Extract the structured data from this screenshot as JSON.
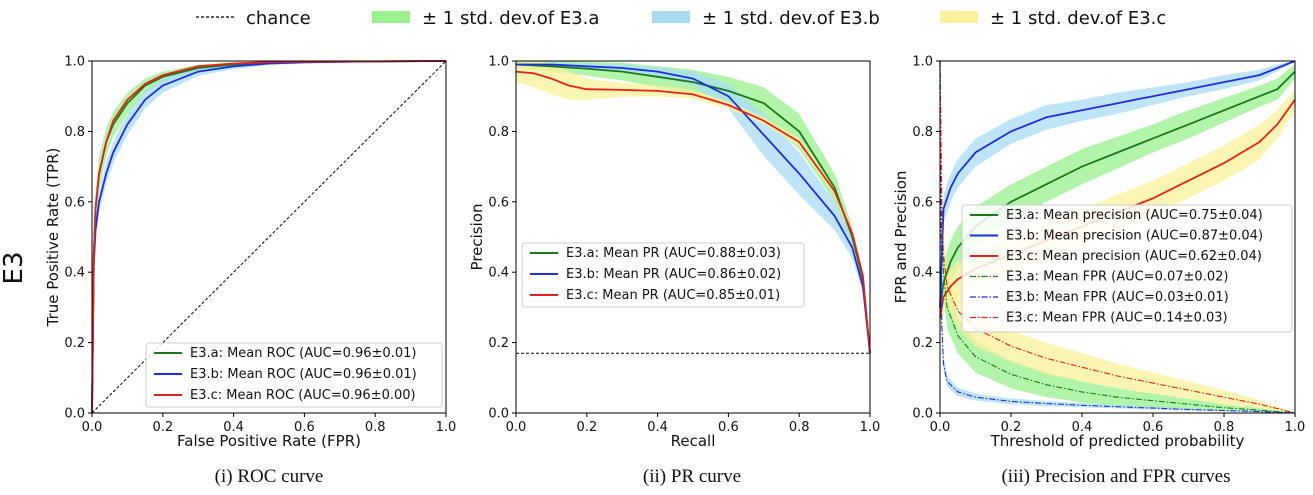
{
  "legend_top": [
    {
      "label": "chance",
      "kind": "line",
      "color": "#000000",
      "dash": true
    },
    {
      "label": "± 1 std. dev.of E3.a",
      "kind": "band",
      "color": "#9af08f"
    },
    {
      "label": "± 1 std. dev.of E3.b",
      "kind": "band",
      "color": "#a8dcf4"
    },
    {
      "label": "± 1 std. dev.of E3.c",
      "kind": "band",
      "color": "#faf29a"
    }
  ],
  "row_label": "E3",
  "colors": {
    "a": "#1a7a1a",
    "b": "#1c2ee0",
    "c": "#e8201a",
    "band_a": "#9af08f",
    "band_b": "#a8dcf4",
    "band_c": "#faf29a"
  },
  "captions": [
    "(i) ROC curve",
    "(ii) PR curve",
    "(iii) Precision and FPR curves"
  ],
  "chart_data": [
    {
      "type": "line",
      "xlabel": "False Positive Rate (FPR)",
      "ylabel": "True Positive Rate (TPR)",
      "xlim": [
        0,
        1
      ],
      "ylim": [
        0,
        1
      ],
      "xticks": [
        "0.0",
        "0.2",
        "0.4",
        "0.6",
        "0.8",
        "1.0"
      ],
      "yticks": [
        "0.0",
        "0.2",
        "0.4",
        "0.6",
        "0.8",
        "1.0"
      ],
      "legend_position": "lower right",
      "series": [
        {
          "name": "E3.a: Mean ROC (AUC=0.96±0.01)",
          "color": "#1a7a1a",
          "x": [
            0,
            0.005,
            0.01,
            0.02,
            0.04,
            0.06,
            0.1,
            0.15,
            0.2,
            0.3,
            0.4,
            0.5,
            0.6,
            0.8,
            1.0
          ],
          "y": [
            0,
            0.45,
            0.58,
            0.68,
            0.77,
            0.82,
            0.88,
            0.93,
            0.955,
            0.98,
            0.99,
            0.995,
            0.997,
            0.999,
            1.0
          ],
          "band": [
            0.05,
            0.05,
            0.05,
            0.05,
            0.04,
            0.035,
            0.03,
            0.02,
            0.015,
            0.01,
            0.006,
            0.004,
            0.003,
            0.001,
            0
          ]
        },
        {
          "name": "E3.b: Mean ROC (AUC=0.96±0.01)",
          "color": "#1c2ee0",
          "x": [
            0,
            0.005,
            0.01,
            0.02,
            0.04,
            0.06,
            0.1,
            0.15,
            0.2,
            0.3,
            0.4,
            0.5,
            0.6,
            0.8,
            1.0
          ],
          "y": [
            0,
            0.42,
            0.52,
            0.6,
            0.68,
            0.74,
            0.82,
            0.89,
            0.93,
            0.97,
            0.985,
            0.993,
            0.996,
            0.999,
            1.0
          ],
          "band": [
            0.03,
            0.03,
            0.03,
            0.03,
            0.03,
            0.03,
            0.03,
            0.025,
            0.02,
            0.012,
            0.008,
            0.005,
            0.003,
            0.001,
            0
          ]
        },
        {
          "name": "E3.c: Mean ROC (AUC=0.96±0.00)",
          "color": "#e8201a",
          "x": [
            0,
            0.005,
            0.01,
            0.02,
            0.04,
            0.06,
            0.1,
            0.15,
            0.2,
            0.3,
            0.4,
            0.5,
            0.6,
            0.8,
            1.0
          ],
          "y": [
            0,
            0.45,
            0.58,
            0.68,
            0.77,
            0.83,
            0.89,
            0.935,
            0.96,
            0.985,
            0.993,
            0.997,
            0.998,
            0.999,
            1.0
          ],
          "band": [
            0.01,
            0.01,
            0.01,
            0.01,
            0.008,
            0.006,
            0.005,
            0.004,
            0.003,
            0.002,
            0.001,
            0.001,
            0.001,
            0,
            0
          ]
        },
        {
          "name": "chance",
          "color": "#000000",
          "dash": true,
          "x": [
            0,
            1
          ],
          "y": [
            0,
            1
          ]
        }
      ]
    },
    {
      "type": "line",
      "xlabel": "Recall",
      "ylabel": "Precision",
      "xlim": [
        0,
        1
      ],
      "ylim": [
        0,
        1
      ],
      "xticks": [
        "0.0",
        "0.2",
        "0.4",
        "0.6",
        "0.8",
        "1.0"
      ],
      "yticks": [
        "0.0",
        "0.2",
        "0.4",
        "0.6",
        "0.8",
        "1.0"
      ],
      "legend_position": "center left",
      "series": [
        {
          "name": "E3.a: Mean PR (AUC=0.88±0.03)",
          "color": "#1a7a1a",
          "x": [
            0,
            0.1,
            0.2,
            0.3,
            0.4,
            0.5,
            0.6,
            0.7,
            0.8,
            0.9,
            0.95,
            0.98,
            1.0
          ],
          "y": [
            0.99,
            0.985,
            0.978,
            0.97,
            0.955,
            0.94,
            0.915,
            0.88,
            0.8,
            0.64,
            0.5,
            0.38,
            0.17
          ],
          "band": [
            0.01,
            0.015,
            0.02,
            0.025,
            0.03,
            0.035,
            0.04,
            0.045,
            0.05,
            0.04,
            0.03,
            0.02,
            0
          ]
        },
        {
          "name": "E3.b: Mean PR (AUC=0.86±0.02)",
          "color": "#1c2ee0",
          "x": [
            0,
            0.1,
            0.2,
            0.3,
            0.4,
            0.5,
            0.6,
            0.7,
            0.8,
            0.9,
            0.95,
            0.98,
            1.0
          ],
          "y": [
            0.99,
            0.99,
            0.985,
            0.98,
            0.97,
            0.95,
            0.9,
            0.79,
            0.68,
            0.56,
            0.47,
            0.36,
            0.17
          ],
          "band": [
            0.005,
            0.006,
            0.008,
            0.01,
            0.012,
            0.02,
            0.035,
            0.06,
            0.06,
            0.04,
            0.03,
            0.02,
            0
          ]
        },
        {
          "name": "E3.c: Mean PR (AUC=0.85±0.01)",
          "color": "#e8201a",
          "x": [
            0,
            0.05,
            0.1,
            0.15,
            0.2,
            0.3,
            0.4,
            0.5,
            0.6,
            0.7,
            0.8,
            0.9,
            0.95,
            0.98,
            1.0
          ],
          "y": [
            0.97,
            0.965,
            0.95,
            0.93,
            0.92,
            0.918,
            0.915,
            0.905,
            0.875,
            0.83,
            0.77,
            0.63,
            0.51,
            0.39,
            0.17
          ],
          "band": [
            0.03,
            0.04,
            0.045,
            0.04,
            0.03,
            0.02,
            0.015,
            0.012,
            0.01,
            0.01,
            0.01,
            0.01,
            0.01,
            0.01,
            0
          ]
        },
        {
          "name": "",
          "color": "#000000",
          "dash": true,
          "x": [
            0,
            1
          ],
          "y": [
            0.17,
            0.17
          ]
        }
      ]
    },
    {
      "type": "line",
      "xlabel": "Threshold of predicted probability",
      "ylabel": "FPR and Precision",
      "xlim": [
        0,
        1
      ],
      "ylim": [
        0,
        1
      ],
      "xticks": [
        "0.0",
        "0.2",
        "0.4",
        "0.6",
        "0.8",
        "1.0"
      ],
      "yticks": [
        "0.0",
        "0.2",
        "0.4",
        "0.6",
        "0.8",
        "1.0"
      ],
      "legend_position": "center right",
      "series": [
        {
          "name": "E3.a: Mean precision (AUC=0.75±0.04)",
          "color": "#1a7a1a",
          "x": [
            0,
            0.01,
            0.03,
            0.05,
            0.1,
            0.2,
            0.3,
            0.4,
            0.5,
            0.6,
            0.7,
            0.8,
            0.9,
            0.95,
            1.0
          ],
          "y": [
            0.3,
            0.37,
            0.43,
            0.47,
            0.53,
            0.6,
            0.65,
            0.7,
            0.74,
            0.78,
            0.82,
            0.86,
            0.9,
            0.92,
            0.97
          ],
          "band": [
            0.06,
            0.06,
            0.06,
            0.06,
            0.055,
            0.05,
            0.05,
            0.05,
            0.045,
            0.04,
            0.04,
            0.035,
            0.03,
            0.03,
            0.02
          ]
        },
        {
          "name": "E3.b: Mean precision (AUC=0.87±0.04)",
          "color": "#1c2ee0",
          "x": [
            0,
            0.01,
            0.03,
            0.05,
            0.1,
            0.2,
            0.3,
            0.4,
            0.5,
            0.6,
            0.7,
            0.8,
            0.9,
            0.95,
            1.0
          ],
          "y": [
            0.3,
            0.58,
            0.64,
            0.68,
            0.74,
            0.8,
            0.84,
            0.86,
            0.88,
            0.9,
            0.92,
            0.94,
            0.96,
            0.98,
            1.0
          ],
          "band": [
            0.04,
            0.04,
            0.04,
            0.04,
            0.04,
            0.035,
            0.035,
            0.03,
            0.03,
            0.025,
            0.02,
            0.02,
            0.015,
            0.01,
            0
          ]
        },
        {
          "name": "E3.c: Mean precision (AUC=0.62±0.04)",
          "color": "#e8201a",
          "x": [
            0,
            0.01,
            0.03,
            0.05,
            0.1,
            0.2,
            0.3,
            0.4,
            0.5,
            0.6,
            0.7,
            0.8,
            0.9,
            0.95,
            1.0
          ],
          "y": [
            0.27,
            0.33,
            0.36,
            0.38,
            0.41,
            0.45,
            0.49,
            0.53,
            0.57,
            0.61,
            0.66,
            0.71,
            0.77,
            0.82,
            0.89
          ],
          "band": [
            0.05,
            0.05,
            0.05,
            0.05,
            0.05,
            0.05,
            0.05,
            0.05,
            0.05,
            0.05,
            0.05,
            0.05,
            0.05,
            0.04,
            0.03
          ]
        },
        {
          "name": "E3.a: Mean FPR (AUC=0.07±0.02)",
          "color": "#1a7a1a",
          "dashdot": true,
          "x": [
            0,
            0.005,
            0.01,
            0.02,
            0.05,
            0.1,
            0.2,
            0.3,
            0.4,
            0.5,
            0.6,
            0.7,
            0.8,
            0.9,
            1.0
          ],
          "y": [
            1.0,
            0.55,
            0.4,
            0.3,
            0.22,
            0.16,
            0.11,
            0.08,
            0.06,
            0.045,
            0.035,
            0.025,
            0.015,
            0.008,
            0
          ],
          "band": [
            0,
            0.06,
            0.06,
            0.06,
            0.05,
            0.045,
            0.04,
            0.035,
            0.03,
            0.025,
            0.02,
            0.015,
            0.01,
            0.006,
            0
          ]
        },
        {
          "name": "E3.b: Mean FPR (AUC=0.03±0.01)",
          "color": "#1c2ee0",
          "dashdot": true,
          "x": [
            0,
            0.005,
            0.01,
            0.02,
            0.05,
            0.1,
            0.2,
            0.3,
            0.4,
            0.5,
            0.6,
            0.7,
            0.8,
            0.9,
            1.0
          ],
          "y": [
            1.0,
            0.25,
            0.14,
            0.09,
            0.06,
            0.045,
            0.033,
            0.027,
            0.022,
            0.018,
            0.014,
            0.01,
            0.007,
            0.004,
            0
          ],
          "band": [
            0,
            0.02,
            0.02,
            0.015,
            0.012,
            0.01,
            0.008,
            0.007,
            0.006,
            0.005,
            0.004,
            0.003,
            0.002,
            0.001,
            0
          ]
        },
        {
          "name": "E3.c: Mean FPR (AUC=0.14±0.03)",
          "color": "#e8201a",
          "dashdot": true,
          "x": [
            0,
            0.005,
            0.01,
            0.02,
            0.05,
            0.1,
            0.2,
            0.3,
            0.4,
            0.5,
            0.6,
            0.7,
            0.8,
            0.9,
            1.0
          ],
          "y": [
            1.0,
            0.6,
            0.45,
            0.36,
            0.29,
            0.24,
            0.19,
            0.155,
            0.13,
            0.105,
            0.085,
            0.065,
            0.045,
            0.025,
            0
          ],
          "band": [
            0,
            0.05,
            0.05,
            0.05,
            0.05,
            0.05,
            0.045,
            0.045,
            0.04,
            0.035,
            0.03,
            0.025,
            0.02,
            0.012,
            0
          ]
        }
      ]
    }
  ]
}
